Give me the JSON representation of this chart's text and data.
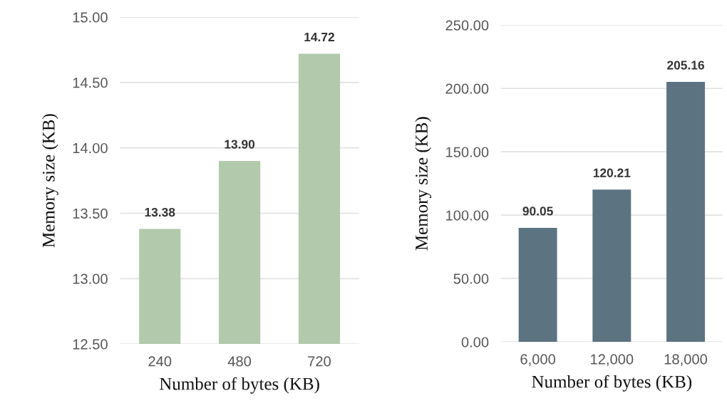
{
  "chart_data": [
    {
      "type": "bar",
      "xlabel": "Number of bytes (KB)",
      "ylabel": "Memory size (KB)",
      "categories": [
        "240",
        "480",
        "720"
      ],
      "values": [
        13.38,
        13.9,
        14.72
      ],
      "color": "#b2c9ab",
      "value_labels": [
        "13.38",
        "13.90",
        "14.72"
      ],
      "ylim": [
        12.5,
        15
      ],
      "yticks": [
        {
          "value": 12.5,
          "label": "12.50"
        },
        {
          "value": 13,
          "label": "13.00"
        },
        {
          "value": 13.5,
          "label": "13.50"
        },
        {
          "value": 14,
          "label": "14.00"
        },
        {
          "value": 14.5,
          "label": "14.50"
        },
        {
          "value": 15,
          "label": "15.00"
        }
      ],
      "grid": "y",
      "legend": false
    },
    {
      "type": "bar",
      "xlabel": "Number of bytes (KB)",
      "ylabel": "Memory size (KB)",
      "categories": [
        "6,000",
        "12,000",
        "18,000"
      ],
      "values": [
        90.05,
        120.21,
        205.16
      ],
      "color": "#5c7382",
      "value_labels": [
        "90.05",
        "120.21",
        "205.16"
      ],
      "ylim": [
        0,
        250
      ],
      "yticks": [
        {
          "value": 0,
          "label": "0.00"
        },
        {
          "value": 50,
          "label": "50.00"
        },
        {
          "value": 100,
          "label": "100.00"
        },
        {
          "value": 150,
          "label": "150.00"
        },
        {
          "value": 200,
          "label": "200.00"
        },
        {
          "value": 250,
          "label": "250.00"
        }
      ],
      "grid": "y",
      "legend": false
    }
  ]
}
